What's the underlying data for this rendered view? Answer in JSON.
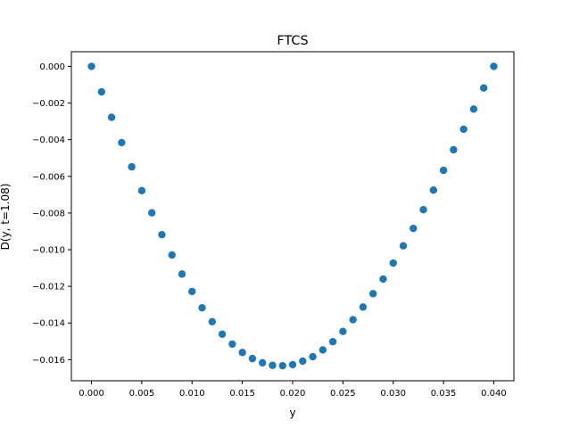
{
  "chart_data": {
    "type": "scatter",
    "title": "FTCS",
    "xlabel": "y",
    "ylabel": "D(y, t=1.08)",
    "xlim": [
      -0.002,
      0.042
    ],
    "ylim": [
      -0.01715,
      0.0008
    ],
    "xticks": [
      0.0,
      0.005,
      0.01,
      0.015,
      0.02,
      0.025,
      0.03,
      0.035,
      0.04
    ],
    "xtick_labels": [
      "0.000",
      "0.005",
      "0.010",
      "0.015",
      "0.020",
      "0.025",
      "0.030",
      "0.035",
      "0.040"
    ],
    "yticks": [
      0.0,
      -0.002,
      -0.004,
      -0.006,
      -0.008,
      -0.01,
      -0.012,
      -0.014,
      -0.016
    ],
    "ytick_labels": [
      "0.000",
      "−0.002",
      "−0.004",
      "−0.006",
      "−0.008",
      "−0.010",
      "−0.012",
      "−0.014",
      "−0.016"
    ],
    "grid": false,
    "marker_color": "#1f77b4",
    "series": [
      {
        "x": [
          0.0,
          0.001,
          0.002,
          0.003,
          0.004,
          0.005,
          0.006,
          0.007,
          0.008,
          0.009,
          0.01,
          0.011,
          0.012,
          0.013,
          0.014,
          0.015,
          0.016,
          0.017,
          0.018,
          0.019,
          0.02,
          0.021,
          0.022,
          0.023,
          0.024,
          0.025,
          0.026,
          0.027,
          0.028,
          0.029,
          0.03,
          0.031,
          0.032,
          0.033,
          0.034,
          0.035,
          0.036,
          0.037,
          0.038,
          0.039,
          0.04
        ],
        "y": [
          0.0,
          -0.00139,
          -0.00278,
          -0.00416,
          -0.00548,
          -0.00678,
          -0.00799,
          -0.00918,
          -0.01029,
          -0.01133,
          -0.01228,
          -0.01317,
          -0.01393,
          -0.01461,
          -0.01515,
          -0.01561,
          -0.01594,
          -0.01617,
          -0.01631,
          -0.01633,
          -0.01627,
          -0.01608,
          -0.01584,
          -0.01547,
          -0.01502,
          -0.01446,
          -0.01382,
          -0.01313,
          -0.0124,
          -0.0116,
          -0.01073,
          -0.00979,
          -0.00884,
          -0.00782,
          -0.00675,
          -0.00567,
          -0.00455,
          -0.00343,
          -0.00233,
          -0.00118,
          0.0
        ]
      }
    ]
  }
}
